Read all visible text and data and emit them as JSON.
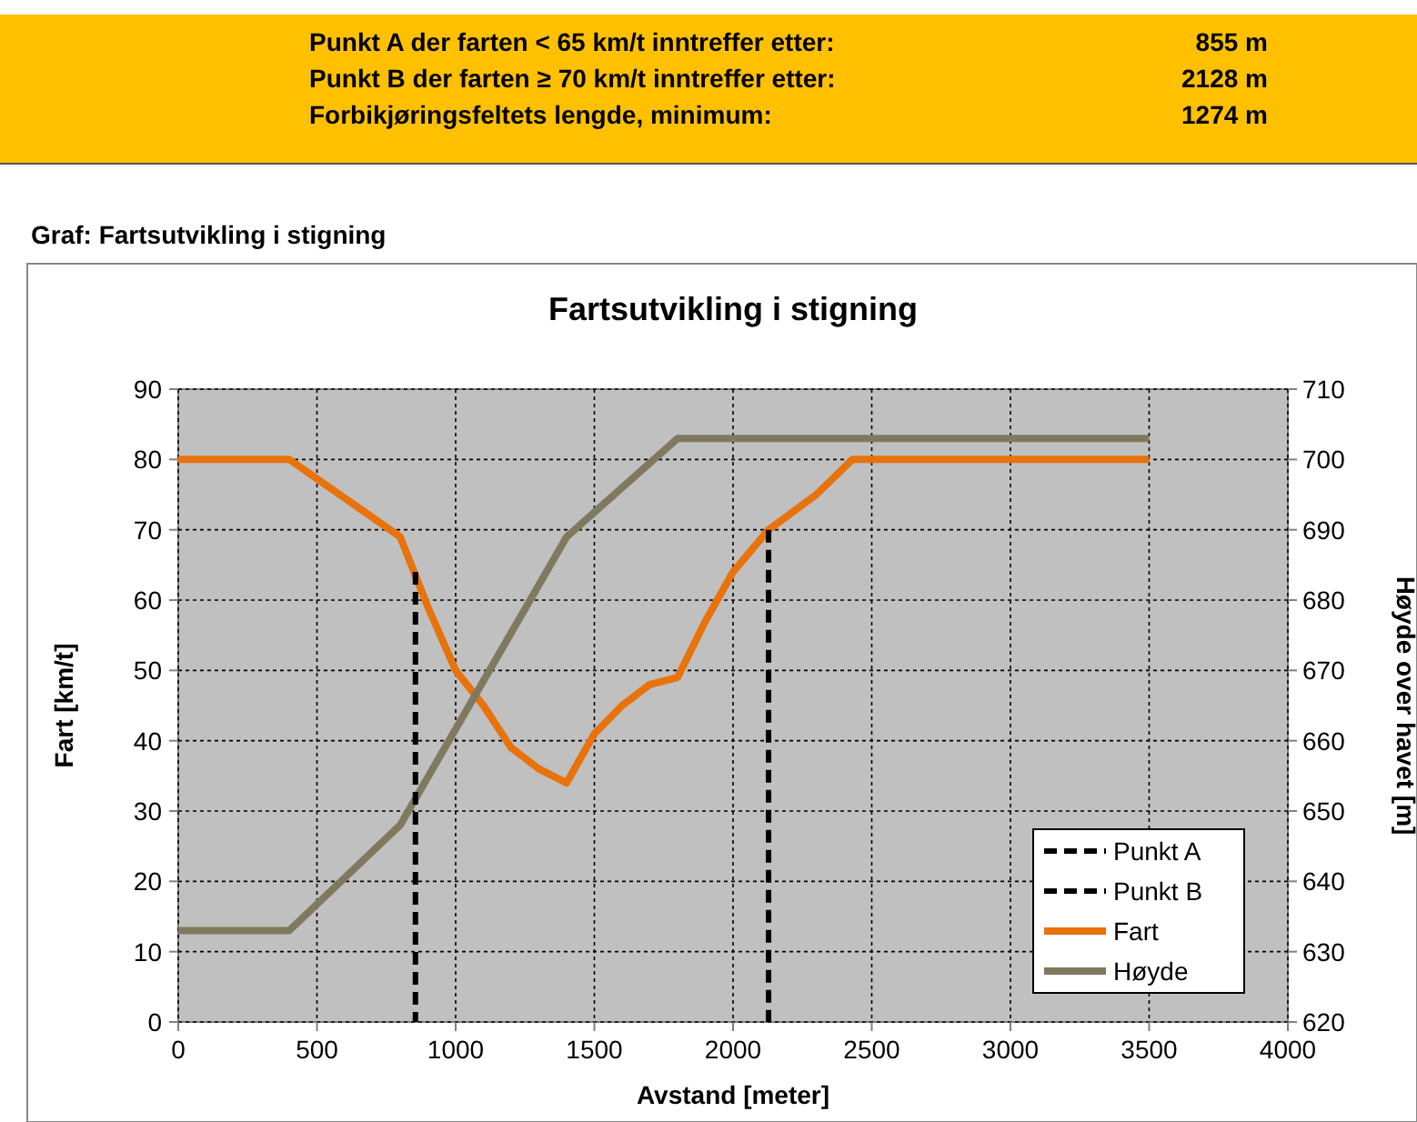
{
  "chart_data": {
    "type": "line",
    "title": "Fartsutvikling i stigning",
    "xlabel": "Avstand [meter]",
    "ylabel": "Fart [km/t]",
    "y2label": "Høyde over havet [m]",
    "annotations": [
      "Punkt A der farten < 65 km/t inntreffer etter:",
      "855 m",
      "Punkt B der farten ≥ 70 km/t inntreffer etter:",
      "2128 m",
      "Forbikjøringsfeltets lengde, minimum:",
      "1274 m",
      "Graf: Fartsutvikling i stigning"
    ],
    "xlim": [
      0,
      4000
    ],
    "xticks": [
      0,
      500,
      1000,
      1500,
      2000,
      2500,
      3000,
      3500,
      4000
    ],
    "ylim": [
      0,
      90
    ],
    "yticks": [
      0,
      10,
      20,
      30,
      40,
      50,
      60,
      70,
      80,
      90
    ],
    "y2lim": [
      620,
      710
    ],
    "y2ticks": [
      620,
      630,
      640,
      650,
      660,
      670,
      680,
      690,
      700,
      710
    ],
    "grid": true,
    "legend": "bottom right",
    "series": [
      {
        "name": "Punkt A",
        "color": "#000000",
        "line_style": "dashed",
        "x": [
          855,
          855
        ],
        "values": [
          0,
          64
        ]
      },
      {
        "name": "Punkt B",
        "color": "#000000",
        "line_style": "dashed",
        "x": [
          2128,
          2128
        ],
        "values": [
          0,
          70
        ]
      },
      {
        "name": "Fart",
        "color": "#e8720c",
        "line_style": "solid",
        "x": [
          0,
          400,
          800,
          900,
          1000,
          1100,
          1200,
          1300,
          1400,
          1500,
          1600,
          1700,
          1800,
          1900,
          2000,
          2128,
          2300,
          2430,
          3500
        ],
        "values": [
          80,
          80,
          69,
          59,
          50,
          45,
          39,
          36,
          34,
          41,
          45,
          48,
          49,
          57,
          64,
          70,
          75,
          80,
          80
        ]
      },
      {
        "name": "Høyde",
        "color": "#7f7a5f",
        "line_style": "solid",
        "axis": "y2",
        "x": [
          0,
          400,
          800,
          1400,
          1800,
          3500
        ],
        "values": [
          633,
          633,
          648,
          689,
          703,
          703
        ]
      }
    ]
  }
}
